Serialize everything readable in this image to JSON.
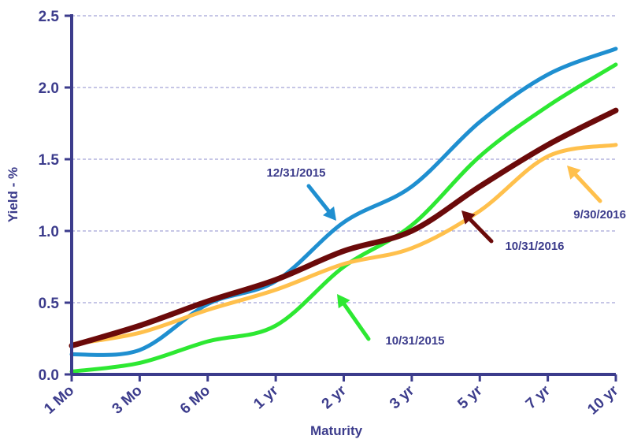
{
  "chart_data": {
    "type": "line",
    "xlabel": "Maturity",
    "ylabel": "Yield - %",
    "categories": [
      "1 Mo",
      "3 Mo",
      "6 Mo",
      "1 yr",
      "2 yr",
      "3 yr",
      "5 yr",
      "7 yr",
      "10 yr"
    ],
    "yticks": [
      "0.0",
      "0.5",
      "1.0",
      "1.5",
      "2.0",
      "2.5"
    ],
    "ylim": [
      0,
      2.5
    ],
    "grid": true,
    "axis_color": "#3c3c8c",
    "grid_color": "#8c8ccc",
    "series": [
      {
        "name": "12/31/2015",
        "color": "#1f8fd0",
        "width": 5,
        "values": [
          0.14,
          0.17,
          0.49,
          0.65,
          1.06,
          1.31,
          1.76,
          2.09,
          2.27
        ]
      },
      {
        "name": "10/31/2015",
        "color": "#2de832",
        "width": 5,
        "values": [
          0.02,
          0.08,
          0.23,
          0.34,
          0.75,
          1.04,
          1.52,
          1.87,
          2.16
        ]
      },
      {
        "name": "9/30/2016",
        "color": "#ffc04c",
        "width": 5,
        "values": [
          0.21,
          0.29,
          0.45,
          0.59,
          0.77,
          0.88,
          1.14,
          1.52,
          1.6
        ]
      },
      {
        "name": "10/31/2016",
        "color": "#6b0a0a",
        "width": 7,
        "values": [
          0.2,
          0.34,
          0.51,
          0.66,
          0.86,
          1.0,
          1.31,
          1.6,
          1.84
        ]
      }
    ],
    "annotations": [
      {
        "series": "12/31/2015",
        "text": "12/31/2015"
      },
      {
        "series": "10/31/2015",
        "text": "10/31/2015"
      },
      {
        "series": "9/30/2016",
        "text": "9/30/2016"
      },
      {
        "series": "10/31/2016",
        "text": "10/31/2016"
      }
    ]
  }
}
